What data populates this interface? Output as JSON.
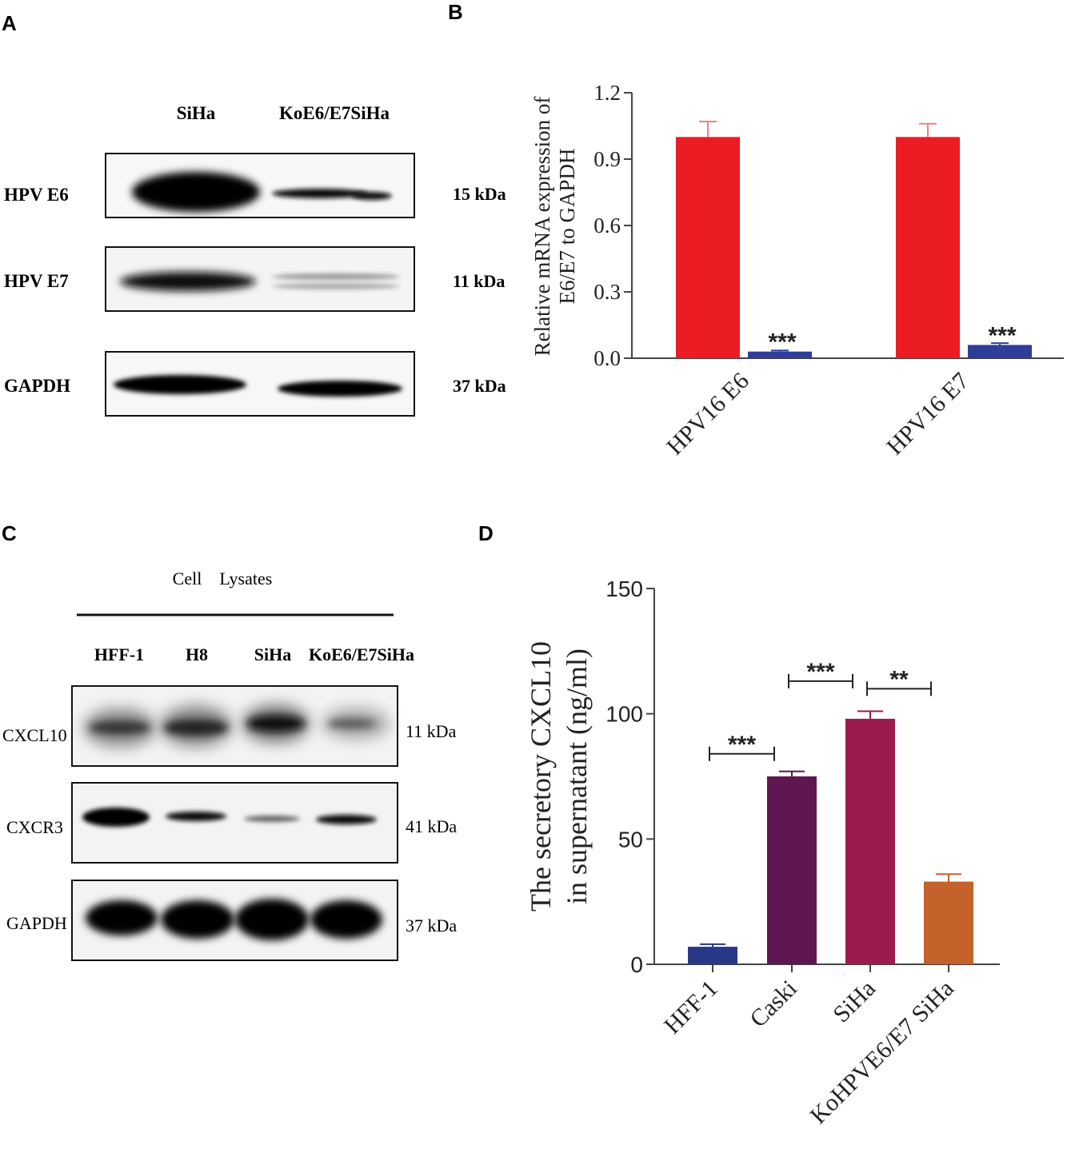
{
  "panel_letters": [
    "A",
    "B",
    "C",
    "D"
  ],
  "panel_a": {
    "lanes": [
      "SiHa",
      "KoE6/E7SiHa"
    ],
    "blots": [
      {
        "label": "HPV E6",
        "size": "15 kDa"
      },
      {
        "label": "HPV E7",
        "size": "11 kDa"
      },
      {
        "label": "GAPDH",
        "size": "37 kDa"
      }
    ]
  },
  "panel_c": {
    "header": "Cell    Lysates",
    "lanes": [
      "HFF-1",
      "H8",
      "SiHa",
      "KoE6/E7SiHa"
    ],
    "blots": [
      {
        "label": "CXCL10",
        "size": "11 kDa"
      },
      {
        "label": "CXCR3",
        "size": "41 kDa"
      },
      {
        "label": "GAPDH",
        "size": "37 kDa"
      }
    ]
  },
  "chart_data": [
    {
      "panel": "B",
      "type": "bar",
      "categories": [
        "HPV16 E6",
        "HPV16 E7"
      ],
      "series": [
        {
          "color": "#ec1c24",
          "values": [
            1.0,
            1.0
          ],
          "errors": [
            0.07,
            0.06
          ]
        },
        {
          "color": "#2e3d98",
          "values": [
            0.03,
            0.06
          ],
          "errors": [
            0.005,
            0.008
          ]
        }
      ],
      "ylabel_lines": [
        "Relative mRNA expression of",
        "E6/E7 to GAPDH"
      ],
      "ylim": [
        0,
        1.2
      ],
      "yticks": [
        "0.0",
        "0.3",
        "0.6",
        "0.9",
        "1.2"
      ],
      "annotations": [
        {
          "text": "***",
          "category": "HPV16 E6",
          "series": 1
        },
        {
          "text": "***",
          "category": "HPV16 E7",
          "series": 1
        }
      ]
    },
    {
      "panel": "D",
      "type": "bar",
      "categories": [
        "HFF-1",
        "Caski",
        "SiHa",
        "KoHPVE6/E7 SiHa"
      ],
      "values": [
        7,
        75,
        98,
        33
      ],
      "errors": [
        1,
        2,
        3,
        3
      ],
      "colors": [
        "#293886",
        "#5e1650",
        "#9b1b4e",
        "#c5612a"
      ],
      "ylabel_lines": [
        "The secretory CXCL10",
        "in supernatant (ng/ml)"
      ],
      "ylim": [
        0,
        150
      ],
      "yticks": [
        "0",
        "50",
        "100",
        "150"
      ],
      "brackets": [
        {
          "from": 0,
          "to": 1,
          "y": 84,
          "text": "***"
        },
        {
          "from": 1,
          "to": 2,
          "y": 113,
          "text": "***"
        },
        {
          "from": 2,
          "to": 3,
          "y": 110,
          "text": "**"
        }
      ]
    }
  ]
}
